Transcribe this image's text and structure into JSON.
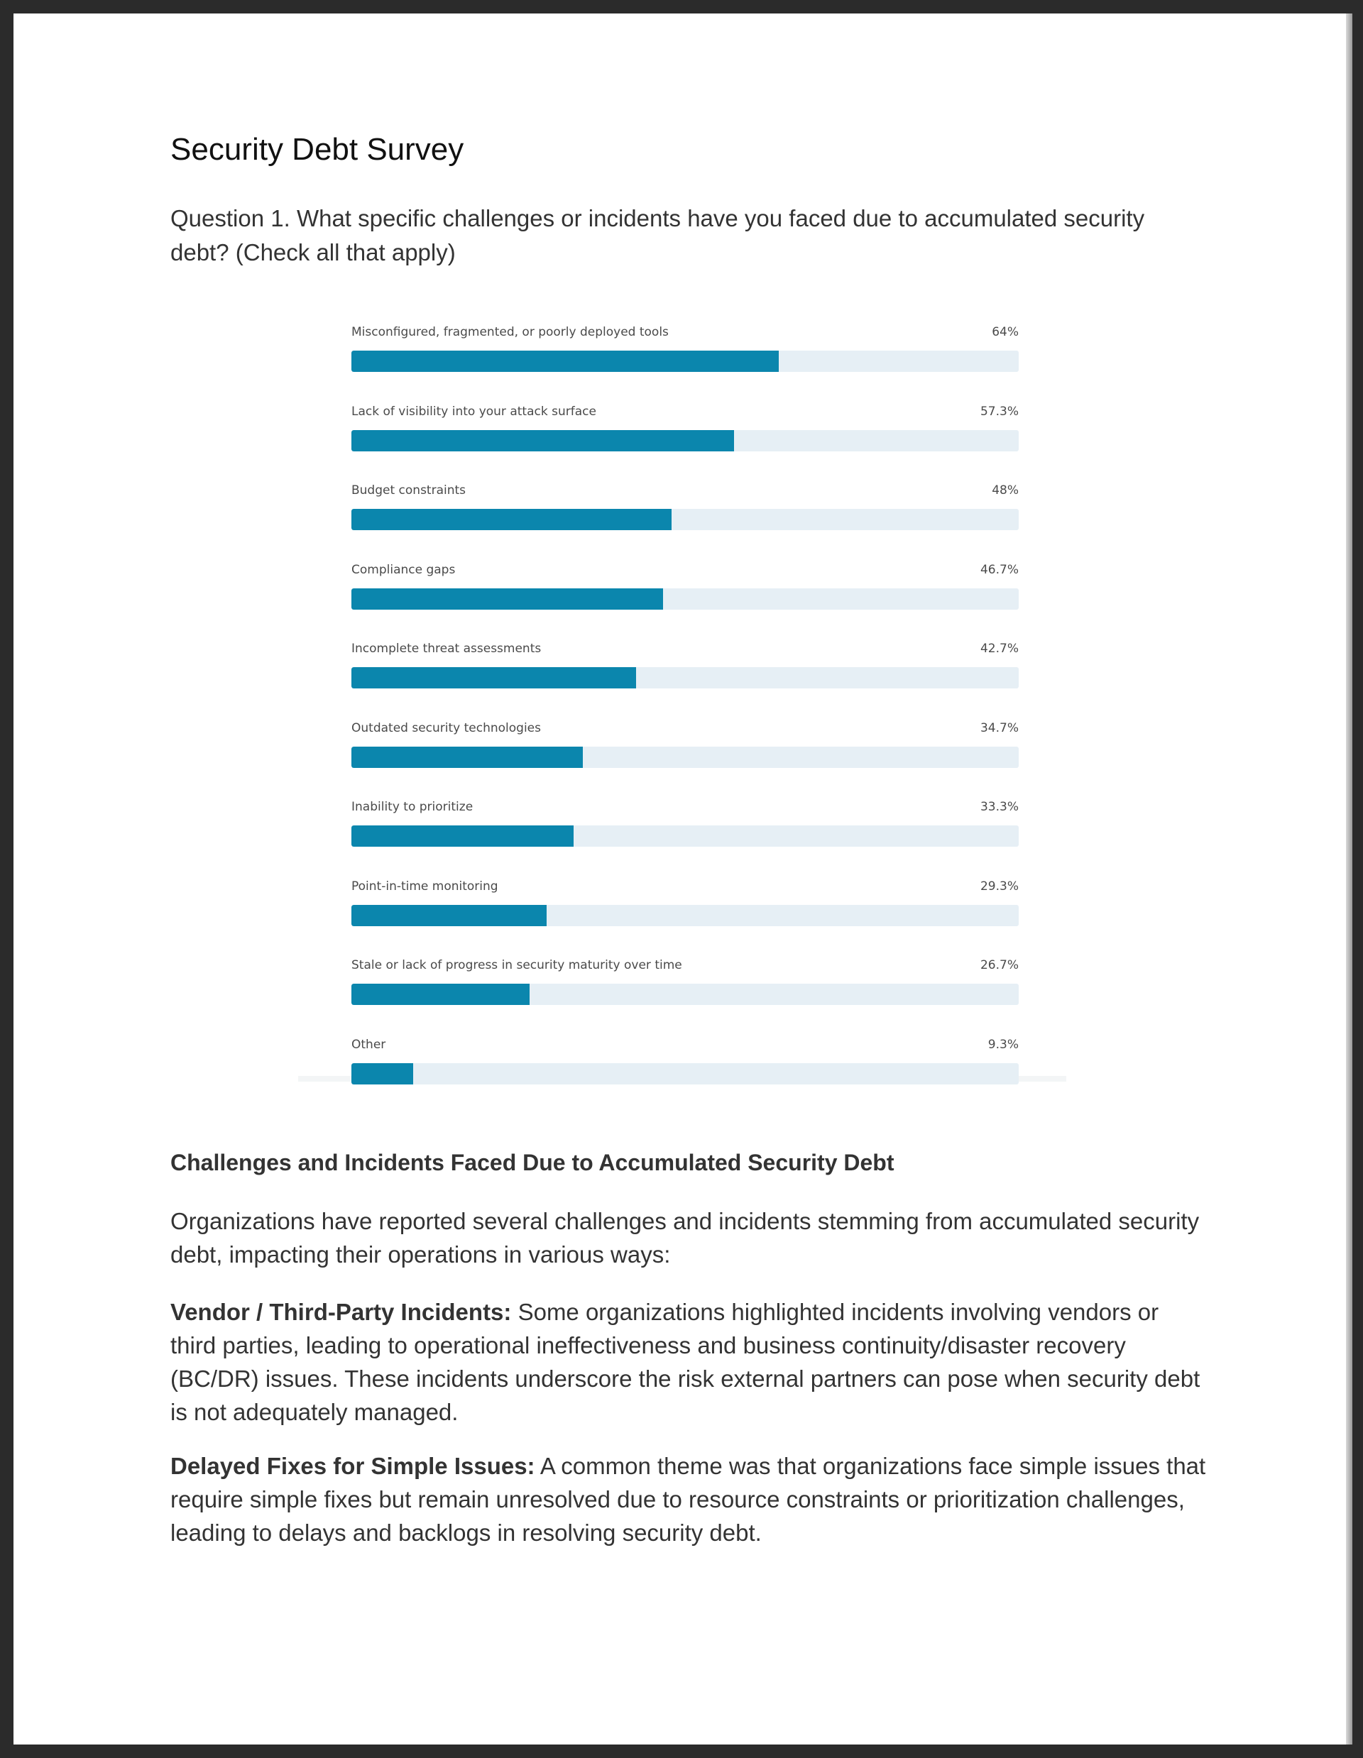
{
  "page": {
    "title": "Security Debt Survey",
    "question": "Question 1. What specific challenges or incidents have you faced due to accumulated security debt? (Check all that apply)"
  },
  "chart_data": {
    "type": "bar",
    "orientation": "horizontal",
    "categories": [
      "Misconfigured, fragmented, or poorly deployed tools",
      "Lack of visibility into your attack surface",
      "Budget constraints",
      "Compliance gaps",
      "Incomplete threat assessments",
      "Outdated security technologies",
      "Inability to prioritize",
      "Point-in-time monitoring",
      "Stale or lack of progress in security maturity over time",
      "Other"
    ],
    "values": [
      64,
      57.3,
      48,
      46.7,
      42.7,
      34.7,
      33.3,
      29.3,
      26.7,
      9.3
    ],
    "value_labels": [
      "64%",
      "57.3%",
      "48%",
      "46.7%",
      "42.7%",
      "34.7%",
      "33.3%",
      "29.3%",
      "26.7%",
      "9.3%"
    ],
    "xlim": [
      0,
      100
    ],
    "bar_color": "#0b86ad",
    "track_color": "#e6eff5",
    "grid": false
  },
  "section": {
    "heading": "Challenges and Incidents Faced Due to Accumulated Security Debt",
    "intro": "Organizations have reported several challenges and incidents stemming from accumulated security debt, impacting their operations in various ways:",
    "items": [
      {
        "label": "Vendor / Third-Party Incidents:",
        "text": " Some organizations highlighted incidents involving vendors or third parties, leading to operational ineffectiveness and business continuity/disaster recovery (BC/DR) issues. These incidents underscore the risk external partners can pose when security debt is not adequately managed."
      },
      {
        "label": "Delayed Fixes for Simple Issues:",
        "text": " A common theme was that organizations face simple issues that require simple fixes but remain unresolved due to resource constraints or prioritization challenges, leading to delays and backlogs in resolving security debt."
      }
    ]
  }
}
